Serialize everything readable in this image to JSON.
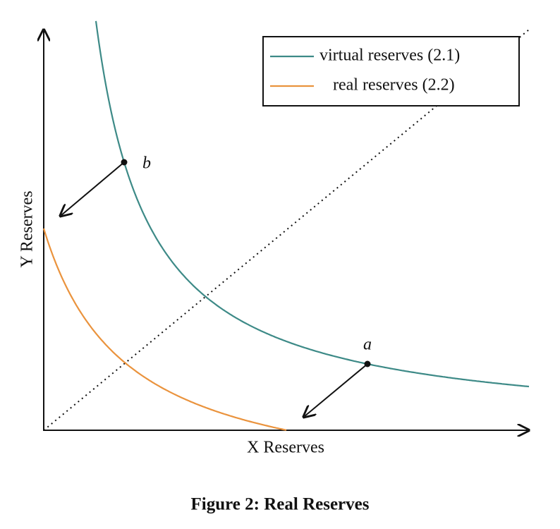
{
  "figure": {
    "caption": "Figure 2: Real Reserves"
  },
  "axes": {
    "x_label": "X Reserves",
    "y_label": "Y Reserves"
  },
  "legend": [
    {
      "label": "virtual reserves (2.1)",
      "color": "#3d8a87"
    },
    {
      "label": "real reserves (2.2)",
      "color": "#ea933d"
    }
  ],
  "points": [
    {
      "label": "a"
    },
    {
      "label": "b"
    }
  ]
}
